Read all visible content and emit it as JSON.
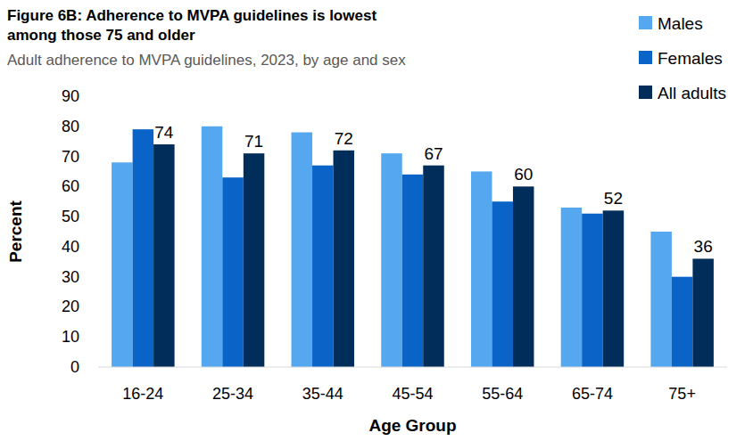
{
  "chart_data": {
    "type": "bar",
    "title": "Figure 6B: Adherence to MVPA guidelines is lowest among those 75 and older",
    "subtitle": "Adult adherence to MVPA guidelines, 2023, by age and sex",
    "x_label": "Age Group",
    "y_label": "Percent",
    "categories": [
      "16-24",
      "25-34",
      "35-44",
      "45-54",
      "55-64",
      "65-74",
      "75+"
    ],
    "series": [
      {
        "name": "Males",
        "color": "#55a8f0",
        "values": [
          68,
          80,
          78,
          71,
          65,
          53,
          45
        ]
      },
      {
        "name": "Females",
        "color": "#0a64c8",
        "values": [
          79,
          63,
          67,
          64,
          55,
          51,
          30
        ]
      },
      {
        "name": "All adults",
        "color": "#002d59",
        "values": [
          74,
          71,
          72,
          67,
          60,
          52,
          36
        ],
        "data_labels": true
      }
    ],
    "ylim": [
      0,
      90
    ],
    "yticks": [
      0,
      10,
      20,
      30,
      40,
      50,
      60,
      70,
      80,
      90
    ],
    "grid": false,
    "legend": "top-right"
  }
}
